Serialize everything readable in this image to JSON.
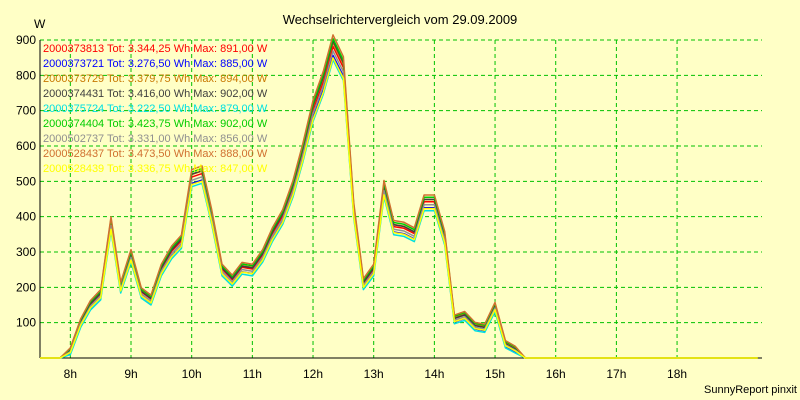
{
  "chart_data": {
    "type": "line",
    "title": "Wechselrichtervergleich vom 29.09.2009",
    "ylabel": "W",
    "footer": "SunnyReport pinxit",
    "ylim": [
      0,
      900
    ],
    "xlim": [
      7.5,
      19.4
    ],
    "y_ticks": [
      100,
      200,
      300,
      400,
      500,
      600,
      700,
      800,
      900
    ],
    "x_ticks": [
      {
        "value": 8,
        "label": "8h"
      },
      {
        "value": 9,
        "label": "9h"
      },
      {
        "value": 10,
        "label": "10h"
      },
      {
        "value": 11,
        "label": "11h"
      },
      {
        "value": 12,
        "label": "12h"
      },
      {
        "value": 13,
        "label": "13h"
      },
      {
        "value": 14,
        "label": "14h"
      },
      {
        "value": 15,
        "label": "15h"
      },
      {
        "value": 16,
        "label": "16h"
      },
      {
        "value": 17,
        "label": "17h"
      },
      {
        "value": 18,
        "label": "18h"
      }
    ],
    "grid": true,
    "legend_position": "top-left",
    "x": [
      7.5,
      7.83,
      8.0,
      8.17,
      8.33,
      8.5,
      8.67,
      8.83,
      9.0,
      9.17,
      9.33,
      9.5,
      9.67,
      9.83,
      10.0,
      10.17,
      10.33,
      10.5,
      10.67,
      10.83,
      11.0,
      11.17,
      11.33,
      11.5,
      11.67,
      11.83,
      12.0,
      12.17,
      12.33,
      12.5,
      12.67,
      12.83,
      13.0,
      13.17,
      13.33,
      13.5,
      13.67,
      13.83,
      14.0,
      14.17,
      14.33,
      14.5,
      14.67,
      14.83,
      15.0,
      15.17,
      15.33,
      15.5,
      15.67,
      15.83,
      16.0,
      16.17,
      16.33,
      16.5,
      16.67,
      16.83,
      17.0,
      17.17,
      17.33,
      17.5,
      17.67,
      17.83,
      18.0,
      18.17,
      18.33,
      18.5,
      18.67,
      18.83,
      19.0,
      19.17,
      19.33
    ],
    "base_values": [
      0,
      0,
      20,
      100,
      150,
      180,
      380,
      200,
      290,
      185,
      165,
      250,
      300,
      330,
      510,
      520,
      400,
      250,
      220,
      255,
      250,
      290,
      350,
      400,
      480,
      580,
      700,
      780,
      880,
      820,
      420,
      210,
      250,
      480,
      370,
      365,
      350,
      440,
      440,
      340,
      110,
      120,
      90,
      85,
      145,
      40,
      25,
      0,
      0,
      0,
      0,
      0,
      0,
      0,
      0,
      0,
      0,
      0,
      0,
      0,
      0,
      0,
      0,
      0,
      0,
      0,
      0,
      0,
      0,
      0,
      0
    ],
    "series": [
      {
        "name": "2000373813",
        "legend": "2000373813 Tot: 3.344,25 Wh Max: 891,00 W",
        "color": "#ff0000",
        "scale": 1.0,
        "offset": 2
      },
      {
        "name": "2000373721",
        "legend": "2000373721 Tot: 3.276,50 Wh Max: 885,00 W",
        "color": "#0000ff",
        "scale": 0.98,
        "offset": -6
      },
      {
        "name": "2000373729",
        "legend": "2000373729 Tot: 3.379,75 Wh Max: 894,00 W",
        "color": "#c87800",
        "scale": 1.01,
        "offset": 4
      },
      {
        "name": "2000374431",
        "legend": "2000374431 Tot: 3.416,00 Wh Max: 902,00 W",
        "color": "#404040",
        "scale": 1.02,
        "offset": 0
      },
      {
        "name": "2000375724",
        "legend": "2000375724 Tot: 3.222,50 Wh Max: 879,00 W",
        "color": "#00e0e0",
        "scale": 0.97,
        "offset": -10
      },
      {
        "name": "2000374404",
        "legend": "2000374404 Tot: 3.423,75 Wh Max: 902,00 W",
        "color": "#00cc00",
        "scale": 1.02,
        "offset": 6
      },
      {
        "name": "2000502737",
        "legend": "2000502737 Tot: 3.331,00 Wh Max: 856,00 W",
        "color": "#909090",
        "scale": 0.99,
        "offset": -2
      },
      {
        "name": "2000528437",
        "legend": "2000528437 Tot: 3.473,50 Wh Max: 888,00 W",
        "color": "#d07030",
        "scale": 1.03,
        "offset": 8
      },
      {
        "name": "2000528439",
        "legend": "2000528439 Tot: 3.336,75 Wh Max: 847,00 W",
        "color": "#ffff00",
        "scale": 0.97,
        "offset": -4
      }
    ]
  }
}
